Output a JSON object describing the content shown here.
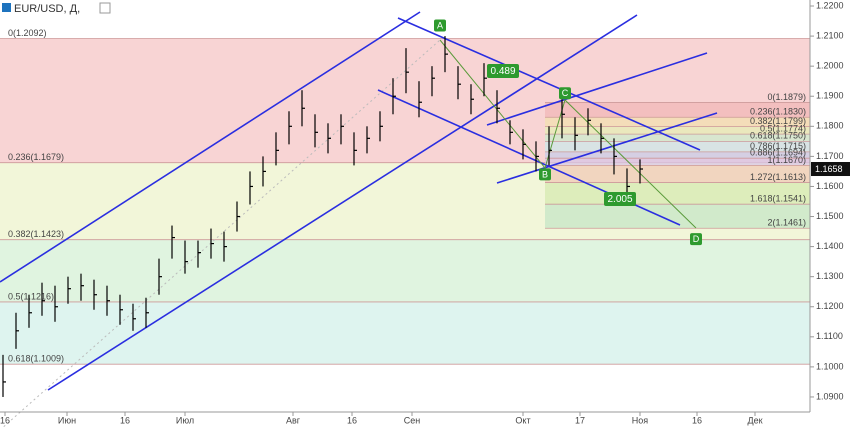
{
  "chart_data": {
    "type": "ohlc",
    "title": "EUR/USD, Д,",
    "ylim": [
      1.085,
      1.222
    ],
    "yticks": [
      {
        "value": 1.22,
        "label": "1.2200"
      },
      {
        "value": 1.21,
        "label": "1.2100"
      },
      {
        "value": 1.2,
        "label": "1.2000"
      },
      {
        "value": 1.19,
        "label": "1.1900"
      },
      {
        "value": 1.18,
        "label": "1.1800"
      },
      {
        "value": 1.17,
        "label": "1.1700"
      },
      {
        "value": 1.16,
        "label": "1.1600"
      },
      {
        "value": 1.15,
        "label": "1.1500"
      },
      {
        "value": 1.14,
        "label": "1.1400"
      },
      {
        "value": 1.13,
        "label": "1.1300"
      },
      {
        "value": 1.12,
        "label": "1.1200"
      },
      {
        "value": 1.11,
        "label": "1.1100"
      },
      {
        "value": 1.1,
        "label": "1.1000"
      },
      {
        "value": 1.09,
        "label": "1.0900"
      }
    ],
    "x_labels": [
      "16",
      "Июн",
      "16",
      "Июл",
      "Авг",
      "16",
      "Сен",
      "Окт",
      "17",
      "Ноя",
      "16",
      "Дек"
    ],
    "series": [
      {
        "color": "#000000",
        "values": [
          1.095,
          1.112,
          1.118,
          1.122,
          1.12,
          1.126,
          1.127,
          1.124,
          1.122,
          1.119,
          1.116,
          1.118,
          1.13,
          1.143,
          1.135,
          1.138,
          1.141,
          1.14,
          1.15,
          1.16,
          1.165,
          1.172,
          1.18,
          1.186,
          1.178,
          1.176,
          1.18,
          1.172,
          1.176,
          1.18,
          1.19,
          1.198,
          1.188,
          1.196,
          1.204,
          1.194,
          1.189,
          1.196,
          1.186,
          1.178,
          1.174,
          1.17,
          1.172,
          1.184,
          1.177,
          1.182,
          1.176,
          1.17,
          1.16,
          1.1658
        ],
        "high": [
          1.104,
          1.118,
          1.124,
          1.128,
          1.127,
          1.13,
          1.131,
          1.129,
          1.127,
          1.124,
          1.121,
          1.123,
          1.136,
          1.147,
          1.142,
          1.142,
          1.146,
          1.145,
          1.155,
          1.165,
          1.17,
          1.178,
          1.185,
          1.192,
          1.184,
          1.181,
          1.184,
          1.178,
          1.18,
          1.185,
          1.196,
          1.206,
          1.195,
          1.2,
          1.21,
          1.2,
          1.194,
          1.201,
          1.192,
          1.182,
          1.179,
          1.175,
          1.18,
          1.189,
          1.183,
          1.186,
          1.181,
          1.176,
          1.166,
          1.169
        ],
        "low": [
          1.09,
          1.106,
          1.113,
          1.117,
          1.115,
          1.121,
          1.122,
          1.119,
          1.117,
          1.114,
          1.112,
          1.113,
          1.124,
          1.136,
          1.131,
          1.133,
          1.136,
          1.135,
          1.145,
          1.154,
          1.16,
          1.167,
          1.174,
          1.18,
          1.173,
          1.171,
          1.174,
          1.167,
          1.171,
          1.175,
          1.184,
          1.191,
          1.183,
          1.19,
          1.198,
          1.189,
          1.184,
          1.19,
          1.181,
          1.174,
          1.169,
          1.165,
          1.167,
          1.176,
          1.172,
          1.177,
          1.171,
          1.164,
          1.156,
          1.161
        ]
      }
    ],
    "current_price": {
      "value": 1.1658,
      "label": "1.1658"
    },
    "fib_left": [
      {
        "label": "0(1.2092)",
        "value": 1.2092,
        "color": "#f5c6c6"
      },
      {
        "label": "0.236(1.1679)",
        "value": 1.1679,
        "color": "#eef3cc"
      },
      {
        "label": "0.382(1.1423)",
        "value": 1.1423,
        "color": "#d5f0d5"
      },
      {
        "label": "0.5(1.1216)",
        "value": 1.1216,
        "color": "#d3f0ea"
      },
      {
        "label": "0.618(1.1009)",
        "value": 1.1009,
        "color": "#ffffff"
      }
    ],
    "fib_right": [
      {
        "label": "0(1.1879)",
        "value": 1.1879,
        "color": "#f2b8b8"
      },
      {
        "label": "0.236(1.1830)",
        "value": 1.183,
        "color": "#f3e0b0"
      },
      {
        "label": "0.382(1.1799)",
        "value": 1.1799,
        "color": "#e6efb5"
      },
      {
        "label": "0.5(1.1774)",
        "value": 1.1774,
        "color": "#cdeccd"
      },
      {
        "label": "0.618(1.1750)",
        "value": 1.175,
        "color": "#cde8ea"
      },
      {
        "label": "0.786(1.1715)",
        "value": 1.1715,
        "color": "#c9cde8"
      },
      {
        "label": "0.886(1.1694)",
        "value": 1.1694,
        "color": "#d8c6e6"
      },
      {
        "label": "1(1.1670)",
        "value": 1.167,
        "color": "#f0c9b6"
      },
      {
        "label": "1.272(1.1613)",
        "value": 1.1613,
        "color": "#d6e9b0"
      },
      {
        "label": "1.618(1.1541)",
        "value": 1.1541,
        "color": "#c6e6c6"
      },
      {
        "label": "2(1.1461)",
        "value": 1.1461,
        "color": "#ffffff"
      }
    ],
    "points": [
      {
        "label": "A",
        "value": 1.2135
      },
      {
        "label": "B",
        "value": 1.164
      },
      {
        "label": "C",
        "value": 1.191
      },
      {
        "label": "D",
        "value": 1.1425
      }
    ],
    "ratios": [
      "0.489",
      "2.005"
    ]
  }
}
